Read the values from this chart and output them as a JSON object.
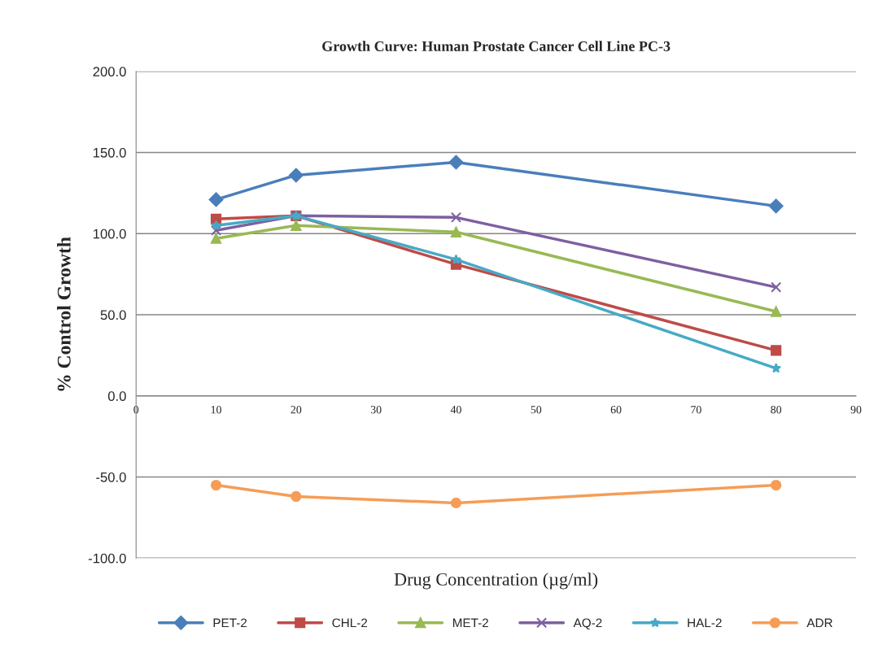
{
  "chart_data": {
    "type": "line",
    "title": "Growth Curve: Human Prostate Cancer Cell Line PC-3",
    "xlabel": "Drug Concentration (µg/ml)",
    "ylabel": "% Control Growth",
    "x": [
      10,
      20,
      40,
      80
    ],
    "series": [
      {
        "name": "PET-2",
        "color": "#4a7ebb",
        "marker": "diamond",
        "values": [
          121,
          136,
          144,
          117
        ]
      },
      {
        "name": "CHL-2",
        "color": "#be4b48",
        "marker": "square",
        "values": [
          109,
          111,
          81,
          28
        ]
      },
      {
        "name": "MET-2",
        "color": "#98b954",
        "marker": "triangle",
        "values": [
          97,
          105,
          101,
          52
        ]
      },
      {
        "name": "AQ-2",
        "color": "#7d60a0",
        "marker": "cross",
        "values": [
          102,
          111,
          110,
          67
        ]
      },
      {
        "name": "HAL-2",
        "color": "#46aac5",
        "marker": "star",
        "values": [
          105,
          111,
          84,
          17
        ]
      },
      {
        "name": "ADR",
        "color": "#f59d56",
        "marker": "circle",
        "values": [
          -55,
          -62,
          -66,
          -55
        ]
      }
    ],
    "xlim": [
      0,
      90
    ],
    "xticks": [
      0,
      10,
      20,
      30,
      40,
      50,
      60,
      70,
      80,
      90
    ],
    "ylim": [
      -100,
      200
    ],
    "yticks": [
      {
        "value": -100,
        "label": "-100.0"
      },
      {
        "value": -50,
        "label": "-50.0"
      },
      {
        "value": 0,
        "label": "0.0"
      },
      {
        "value": 50,
        "label": "50.0"
      },
      {
        "value": 100,
        "label": "100.0"
      },
      {
        "value": 150,
        "label": "150.0"
      },
      {
        "value": 200,
        "label": "200.0"
      }
    ],
    "grid": "y",
    "legend": "bottom"
  }
}
